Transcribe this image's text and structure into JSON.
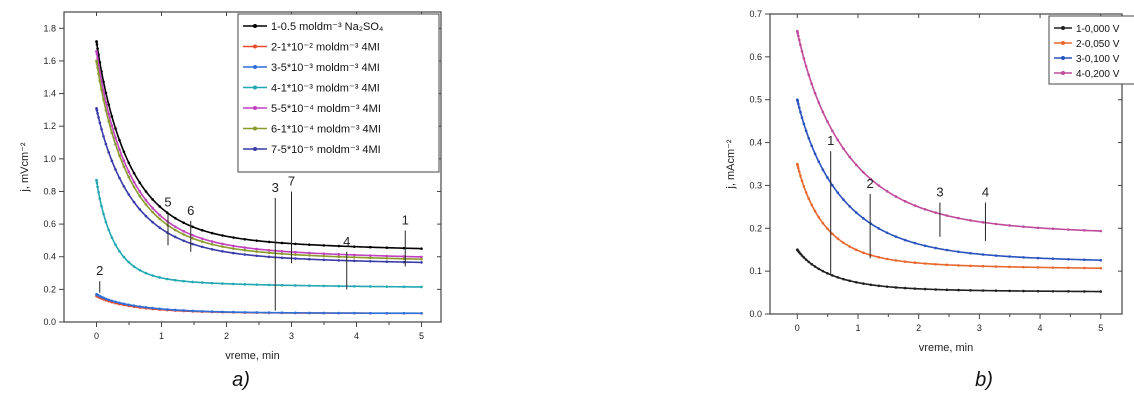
{
  "chart_data": [
    {
      "panel": "a)",
      "type": "line",
      "xlabel": "vreme, min",
      "ylabel": "j, mVcm⁻²",
      "xlim": [
        -0.5,
        5.3
      ],
      "ylim": [
        0,
        1.9
      ],
      "xticks": [
        0,
        1,
        2,
        3,
        4,
        5
      ],
      "yticks": [
        0.0,
        0.2,
        0.4,
        0.6,
        0.8,
        1.0,
        1.2,
        1.4,
        1.6,
        1.8
      ],
      "legend_position": "top-right",
      "series": [
        {
          "name": "1-0.5 moldm⁻³  Na₂SO₄",
          "color": "#000000",
          "start": 1.72,
          "end": 0.34,
          "knee": 0.55,
          "shape": 0.45
        },
        {
          "name": "2-1*10⁻² moldm⁻³ 4MI",
          "color": "#e84a2e",
          "start": 0.16,
          "end": 0.05,
          "knee": 0.65,
          "shape": 0.8
        },
        {
          "name": "3-5*10⁻³ moldm⁻³ 4MI",
          "color": "#2f6fd8",
          "start": 0.17,
          "end": 0.05,
          "knee": 0.7,
          "shape": 0.8
        },
        {
          "name": "4-1*10⁻³ moldm⁻³ 4MI",
          "color": "#22a8b0",
          "start": 0.87,
          "end": 0.18,
          "knee": 0.3,
          "shape": 0.5
        },
        {
          "name": "5-5*10⁻⁴ moldm⁻³ 4MI",
          "color": "#c040c0",
          "start": 1.66,
          "end": 0.29,
          "knee": 0.55,
          "shape": 0.45
        },
        {
          "name": "6-1*10⁻⁴ moldm⁻³ 4MI",
          "color": "#8a9a2a",
          "start": 1.6,
          "end": 0.28,
          "knee": 0.55,
          "shape": 0.45
        },
        {
          "name": "7-5*10⁻⁵ moldm⁻³ 4MI",
          "color": "#3a3aa8",
          "start": 1.31,
          "end": 0.28,
          "knee": 0.6,
          "shape": 0.45
        }
      ],
      "annotations": [
        {
          "label": "1",
          "x": 4.75,
          "y_top": 0.56,
          "y_bottom": 0.34
        },
        {
          "label": "2",
          "x": 0.05,
          "y_top": 0.25,
          "y_bottom": 0.18
        },
        {
          "label": "3",
          "x": 2.75,
          "y_top": 0.76,
          "y_bottom": 0.07
        },
        {
          "label": "4",
          "x": 3.85,
          "y_top": 0.43,
          "y_bottom": 0.2
        },
        {
          "label": "5",
          "x": 1.1,
          "y_top": 0.67,
          "y_bottom": 0.47
        },
        {
          "label": "6",
          "x": 1.45,
          "y_top": 0.62,
          "y_bottom": 0.43
        },
        {
          "label": "7",
          "x": 3.0,
          "y_top": 0.8,
          "y_bottom": 0.36
        }
      ]
    },
    {
      "panel": "b)",
      "type": "line",
      "xlabel": "vreme, min",
      "ylabel": "j, mAcm⁻²",
      "xlim": [
        -0.45,
        5.35
      ],
      "ylim": [
        0,
        0.7
      ],
      "xticks": [
        0,
        1,
        2,
        3,
        4,
        5
      ],
      "yticks": [
        0.0,
        0.1,
        0.2,
        0.3,
        0.4,
        0.5,
        0.6,
        0.7
      ],
      "legend_position": "top-right",
      "series": [
        {
          "name": "1-0,000 V",
          "color": "#1f1f1f",
          "start": 0.15,
          "end": 0.045,
          "knee": 0.6,
          "shape": 0.5
        },
        {
          "name": "2-0,050 V",
          "color": "#e8682e",
          "start": 0.35,
          "end": 0.09,
          "knee": 0.5,
          "shape": 0.5
        },
        {
          "name": "3-0,100 V",
          "color": "#2a52be",
          "start": 0.5,
          "end": 0.097,
          "knee": 0.8,
          "shape": 0.55
        },
        {
          "name": "4-0,200 V",
          "color": "#c04a9a",
          "start": 0.66,
          "end": 0.155,
          "knee": 0.9,
          "shape": 0.55
        }
      ],
      "annotations": [
        {
          "label": "1",
          "x": 0.55,
          "y_top": 0.38,
          "y_bottom": 0.09
        },
        {
          "label": "2",
          "x": 1.2,
          "y_top": 0.28,
          "y_bottom": 0.13
        },
        {
          "label": "3",
          "x": 2.35,
          "y_top": 0.26,
          "y_bottom": 0.18
        },
        {
          "label": "4",
          "x": 3.1,
          "y_top": 0.26,
          "y_bottom": 0.17
        }
      ]
    }
  ]
}
